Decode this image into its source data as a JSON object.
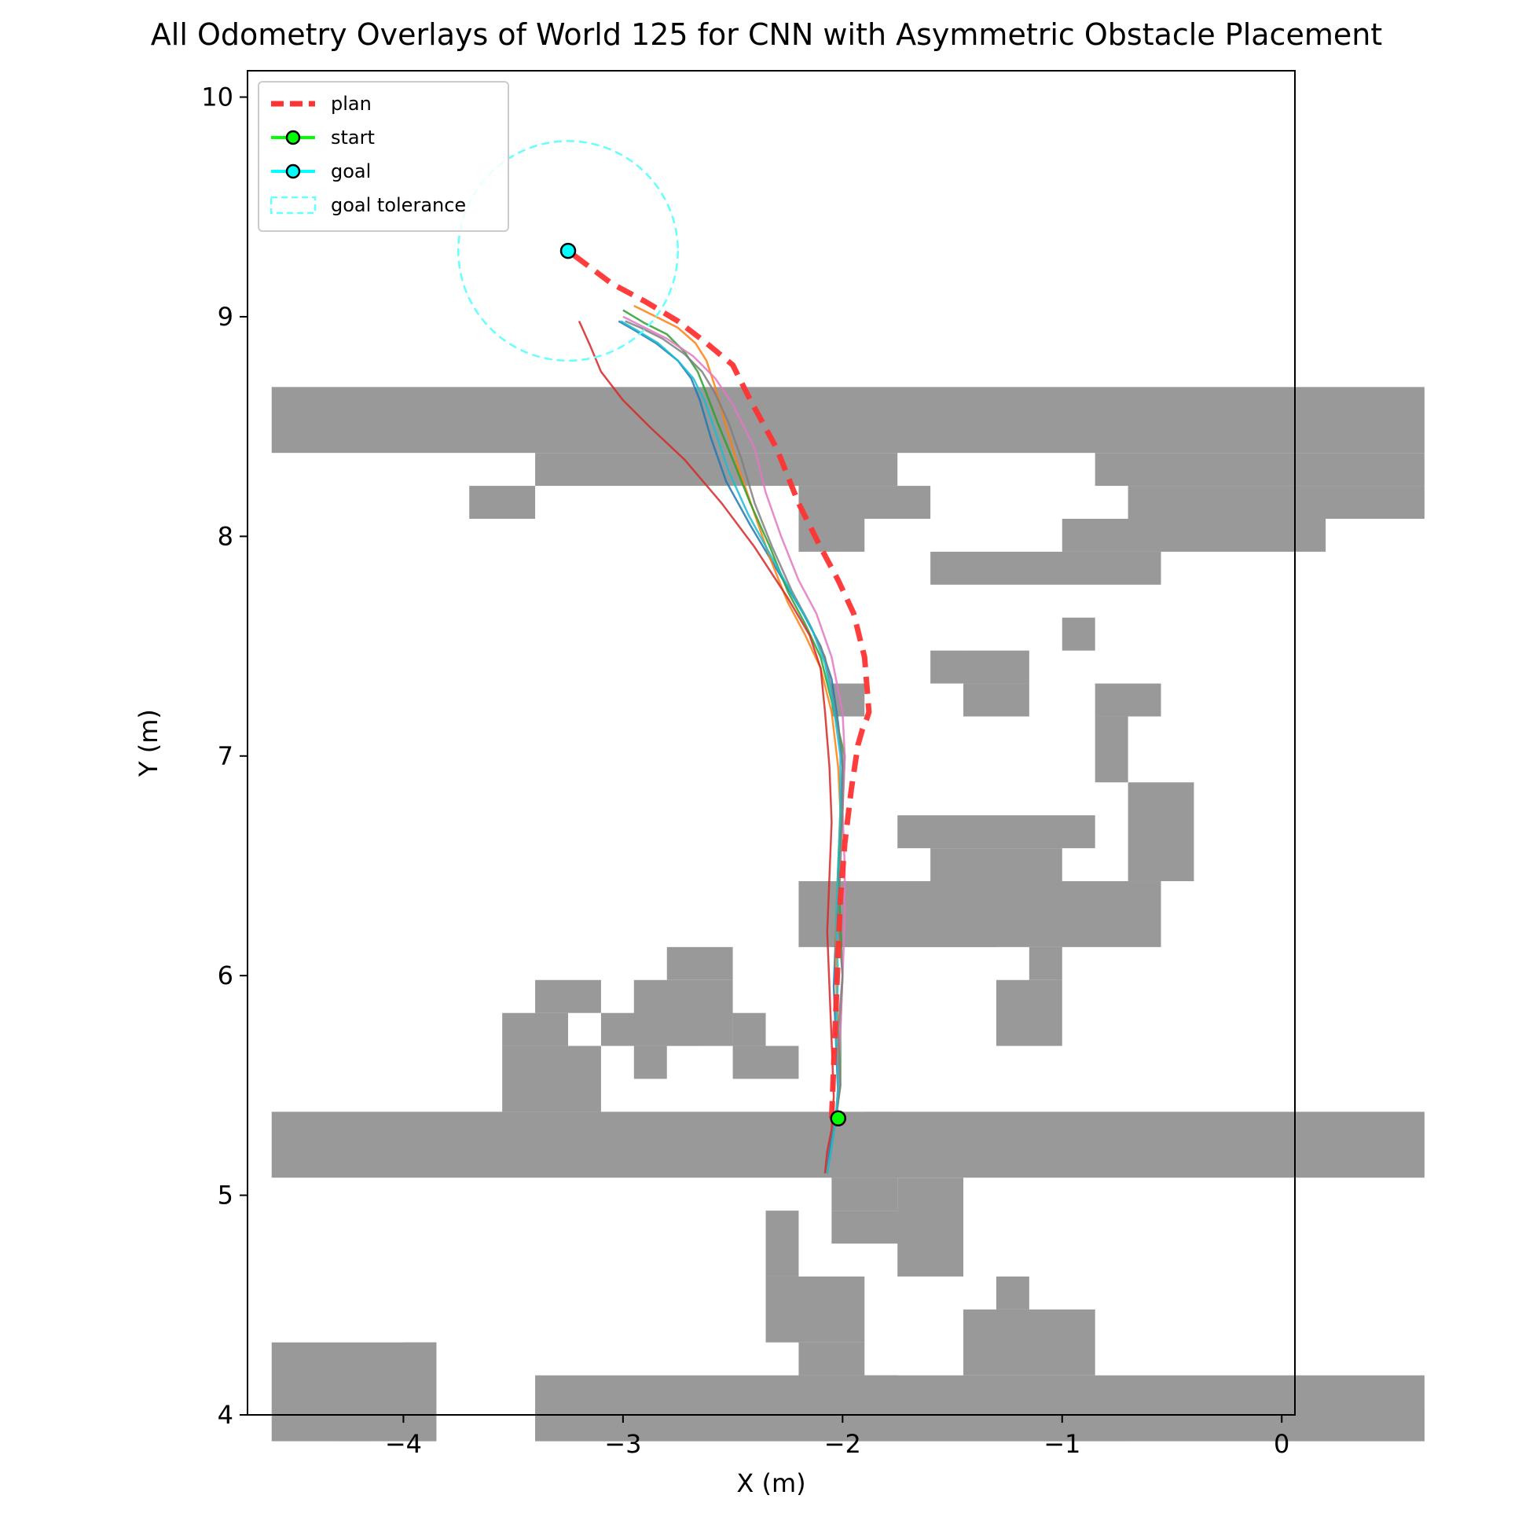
{
  "chart_data": {
    "type": "line",
    "title": "All Odometry Overlays of World 125 for CNN with Asymmetric Obstacle Placement",
    "xlabel": "X (m)",
    "ylabel": "Y (m)",
    "xlim": [
      -4.71,
      0.06
    ],
    "ylim": [
      4.0,
      10.12
    ],
    "x_ticks": [
      -4,
      -3,
      -2,
      -1,
      0
    ],
    "x_tick_labels": [
      "−4",
      "−3",
      "−2",
      "−1",
      "0"
    ],
    "y_ticks": [
      4,
      5,
      6,
      7,
      8,
      9,
      10
    ],
    "y_tick_labels": [
      "4",
      "5",
      "6",
      "7",
      "8",
      "9",
      "10"
    ],
    "grid": false,
    "legend_position": "upper-left",
    "legend": [
      {
        "label": "plan",
        "color": "#ff3333",
        "style": "dashed"
      },
      {
        "label": "start",
        "color": "#00ff00",
        "style": "solid-marker",
        "marker_face": "#00ff00"
      },
      {
        "label": "goal",
        "color": "#00ffff",
        "style": "solid-marker",
        "marker_face": "#00ffff"
      },
      {
        "label": "goal tolerance",
        "color": "#66ffff",
        "style": "dashed-box"
      }
    ],
    "start": {
      "x": -2.02,
      "y": 5.35,
      "color": "#00ff00"
    },
    "goal": {
      "x": -3.25,
      "y": 9.3,
      "color": "#00ffff"
    },
    "goal_tolerance": {
      "x": -3.25,
      "y": 9.3,
      "radius": 0.5,
      "color": "#66ffff"
    },
    "obstacles": {
      "color": "#999999",
      "cell_size": 0.15,
      "x_origin": -4.6,
      "y_origin": 3.88,
      "cells": [
        [
          0,
          4,
          0,
          2
        ],
        [
          0,
          34,
          8,
          9
        ],
        [
          8,
          34,
          0,
          1
        ],
        [
          0,
          34,
          30,
          31
        ],
        [
          25,
          34,
          29,
          29
        ],
        [
          26,
          34,
          28,
          28
        ],
        [
          6,
          7,
          28,
          28
        ],
        [
          16,
          19,
          28,
          28
        ],
        [
          16,
          17,
          27,
          27
        ],
        [
          24,
          31,
          27,
          27
        ],
        [
          20,
          26,
          26,
          26
        ],
        [
          26,
          27,
          17,
          19
        ],
        [
          19,
          23,
          16,
          16
        ],
        [
          20,
          23,
          17,
          17
        ],
        [
          19,
          24,
          18,
          18
        ],
        [
          22,
          23,
          12,
          13
        ],
        [
          23,
          23,
          14,
          14
        ],
        [
          16,
          26,
          15,
          16
        ],
        [
          17,
          21,
          15,
          15
        ],
        [
          17,
          17,
          22,
          22
        ],
        [
          20,
          20,
          23,
          23
        ],
        [
          8,
          18,
          29,
          29
        ],
        [
          8,
          25,
          0,
          0
        ],
        [
          31,
          34,
          0,
          0
        ],
        [
          2,
          2,
          0,
          0
        ],
        [
          21,
          24,
          2,
          3
        ],
        [
          22,
          22,
          4,
          4
        ],
        [
          16,
          18,
          1,
          1
        ],
        [
          15,
          17,
          3,
          4
        ],
        [
          16,
          17,
          2,
          2
        ],
        [
          15,
          15,
          5,
          6
        ],
        [
          17,
          19,
          6,
          6
        ],
        [
          19,
          20,
          5,
          7
        ],
        [
          17,
          18,
          7,
          7
        ],
        [
          17,
          18,
          8,
          8
        ],
        [
          18,
          18,
          9,
          9
        ],
        [
          7,
          9,
          10,
          11
        ],
        [
          7,
          8,
          12,
          12
        ],
        [
          8,
          9,
          13,
          13
        ],
        [
          11,
          11,
          11,
          11
        ],
        [
          10,
          12,
          12,
          12
        ],
        [
          11,
          13,
          12,
          13
        ],
        [
          12,
          13,
          14,
          14
        ],
        [
          14,
          14,
          12,
          12
        ],
        [
          14,
          15,
          11,
          11
        ],
        [
          4,
          4,
          0,
          2
        ],
        [
          25,
          25,
          20,
          21
        ],
        [
          25,
          26,
          22,
          22
        ],
        [
          24,
          24,
          24,
          24
        ],
        [
          21,
          22,
          22,
          22
        ],
        [
          21,
          22,
          23,
          23
        ]
      ]
    },
    "plan": {
      "name": "plan",
      "color": "#ff3333",
      "x": [
        -2.05,
        -2.04,
        -2.03,
        -2.02,
        -2.01,
        -1.99,
        -1.96,
        -1.93,
        -1.91,
        -1.89,
        -1.88,
        -1.9,
        -1.95,
        -2.02,
        -2.1,
        -2.2,
        -2.3,
        -2.42,
        -2.5,
        -2.62,
        -2.75,
        -2.9,
        -3.05,
        -3.25
      ],
      "y": [
        5.35,
        5.6,
        5.85,
        6.1,
        6.35,
        6.6,
        6.85,
        7.05,
        7.12,
        7.17,
        7.2,
        7.45,
        7.65,
        7.8,
        7.95,
        8.15,
        8.4,
        8.62,
        8.78,
        8.88,
        8.98,
        9.07,
        9.15,
        9.3
      ]
    },
    "series": [
      {
        "color": "#1f77b4",
        "x": [
          -2.07,
          -2.06,
          -2.04,
          -2.02,
          -2.03,
          -2.04,
          -2.03,
          -2.02,
          -2.01,
          -2.0,
          -2.02,
          -2.05,
          -2.1,
          -2.18,
          -2.3,
          -2.42,
          -2.53,
          -2.6,
          -2.65,
          -2.69,
          -2.75,
          -2.85,
          -2.95,
          -3.02
        ],
        "y": [
          5.1,
          5.2,
          5.3,
          5.45,
          5.7,
          5.95,
          6.2,
          6.45,
          6.7,
          6.95,
          7.15,
          7.35,
          7.5,
          7.65,
          7.85,
          8.05,
          8.25,
          8.45,
          8.62,
          8.72,
          8.8,
          8.88,
          8.94,
          8.98
        ]
      },
      {
        "color": "#ff7f0e",
        "x": [
          -2.07,
          -2.05,
          -2.03,
          -2.02,
          -2.02,
          -2.03,
          -2.03,
          -2.02,
          -2.01,
          -2.02,
          -2.05,
          -2.1,
          -2.17,
          -2.25,
          -2.33,
          -2.4,
          -2.47,
          -2.53,
          -2.58,
          -2.62,
          -2.67,
          -2.75,
          -2.85,
          -2.95
        ],
        "y": [
          5.1,
          5.22,
          5.35,
          5.5,
          5.75,
          6.0,
          6.25,
          6.5,
          6.75,
          6.95,
          7.2,
          7.4,
          7.55,
          7.7,
          7.9,
          8.1,
          8.3,
          8.5,
          8.68,
          8.8,
          8.88,
          8.95,
          9.0,
          9.05
        ]
      },
      {
        "color": "#2ca02c",
        "x": [
          -2.07,
          -2.05,
          -2.03,
          -2.01,
          -2.01,
          -2.0,
          -2.01,
          -2.02,
          -2.0,
          -1.99,
          -2.05,
          -2.1,
          -2.17,
          -2.25,
          -2.33,
          -2.42,
          -2.5,
          -2.57,
          -2.62,
          -2.66,
          -2.72,
          -2.8,
          -2.9,
          -3.0
        ],
        "y": [
          5.1,
          5.22,
          5.35,
          5.5,
          5.75,
          6.0,
          6.25,
          6.5,
          6.75,
          7.0,
          7.25,
          7.45,
          7.6,
          7.75,
          7.95,
          8.15,
          8.35,
          8.52,
          8.65,
          8.75,
          8.84,
          8.92,
          8.97,
          9.03
        ]
      },
      {
        "color": "#d62728",
        "x": [
          -2.08,
          -2.07,
          -2.05,
          -2.04,
          -2.05,
          -2.06,
          -2.07,
          -2.06,
          -2.05,
          -2.06,
          -2.08,
          -2.1,
          -2.15,
          -2.25,
          -2.4,
          -2.55,
          -2.72,
          -2.88,
          -3.0,
          -3.1,
          -3.15,
          -3.2
        ],
        "y": [
          5.1,
          5.2,
          5.3,
          5.45,
          5.7,
          5.95,
          6.2,
          6.45,
          6.7,
          6.95,
          7.2,
          7.4,
          7.55,
          7.72,
          7.95,
          8.15,
          8.35,
          8.5,
          8.62,
          8.75,
          8.87,
          8.98
        ]
      },
      {
        "color": "#e377c2",
        "x": [
          -2.07,
          -2.05,
          -2.03,
          -2.02,
          -2.01,
          -2.0,
          -1.99,
          -1.99,
          -2.0,
          -1.99,
          -2.0,
          -2.05,
          -2.12,
          -2.2,
          -2.28,
          -2.35,
          -2.4,
          -2.45,
          -2.5,
          -2.58,
          -2.68,
          -2.8,
          -2.92,
          -3.0
        ],
        "y": [
          5.1,
          5.22,
          5.35,
          5.5,
          5.75,
          6.0,
          6.25,
          6.5,
          6.75,
          7.0,
          7.2,
          7.45,
          7.65,
          7.8,
          8.0,
          8.2,
          8.4,
          8.5,
          8.6,
          8.72,
          8.82,
          8.9,
          8.96,
          9.0
        ]
      },
      {
        "color": "#7f7f7f",
        "x": [
          -2.07,
          -2.05,
          -2.03,
          -2.01,
          -2.02,
          -2.0,
          -2.02,
          -2.01,
          -2.0,
          -2.0,
          -2.04,
          -2.08,
          -2.15,
          -2.23,
          -2.32,
          -2.4,
          -2.46,
          -2.52,
          -2.58,
          -2.64,
          -2.72,
          -2.82,
          -2.92,
          -2.99
        ],
        "y": [
          5.1,
          5.22,
          5.35,
          5.5,
          5.75,
          6.0,
          6.25,
          6.5,
          6.75,
          7.0,
          7.25,
          7.45,
          7.6,
          7.75,
          7.95,
          8.15,
          8.35,
          8.52,
          8.65,
          8.75,
          8.83,
          8.9,
          8.95,
          8.98
        ]
      },
      {
        "color": "#17becf",
        "x": [
          -2.07,
          -2.05,
          -2.03,
          -2.02,
          -2.03,
          -2.02,
          -2.03,
          -2.02,
          -2.01,
          -2.01,
          -2.04,
          -2.08,
          -2.14,
          -2.22,
          -2.32,
          -2.43,
          -2.52,
          -2.58,
          -2.63,
          -2.68,
          -2.75,
          -2.84,
          -2.94,
          -3.01
        ],
        "y": [
          5.1,
          5.22,
          5.35,
          5.5,
          5.75,
          6.0,
          6.25,
          6.5,
          6.75,
          7.0,
          7.22,
          7.42,
          7.58,
          7.72,
          7.9,
          8.1,
          8.3,
          8.48,
          8.62,
          8.72,
          8.8,
          8.88,
          8.94,
          8.98
        ]
      }
    ]
  }
}
